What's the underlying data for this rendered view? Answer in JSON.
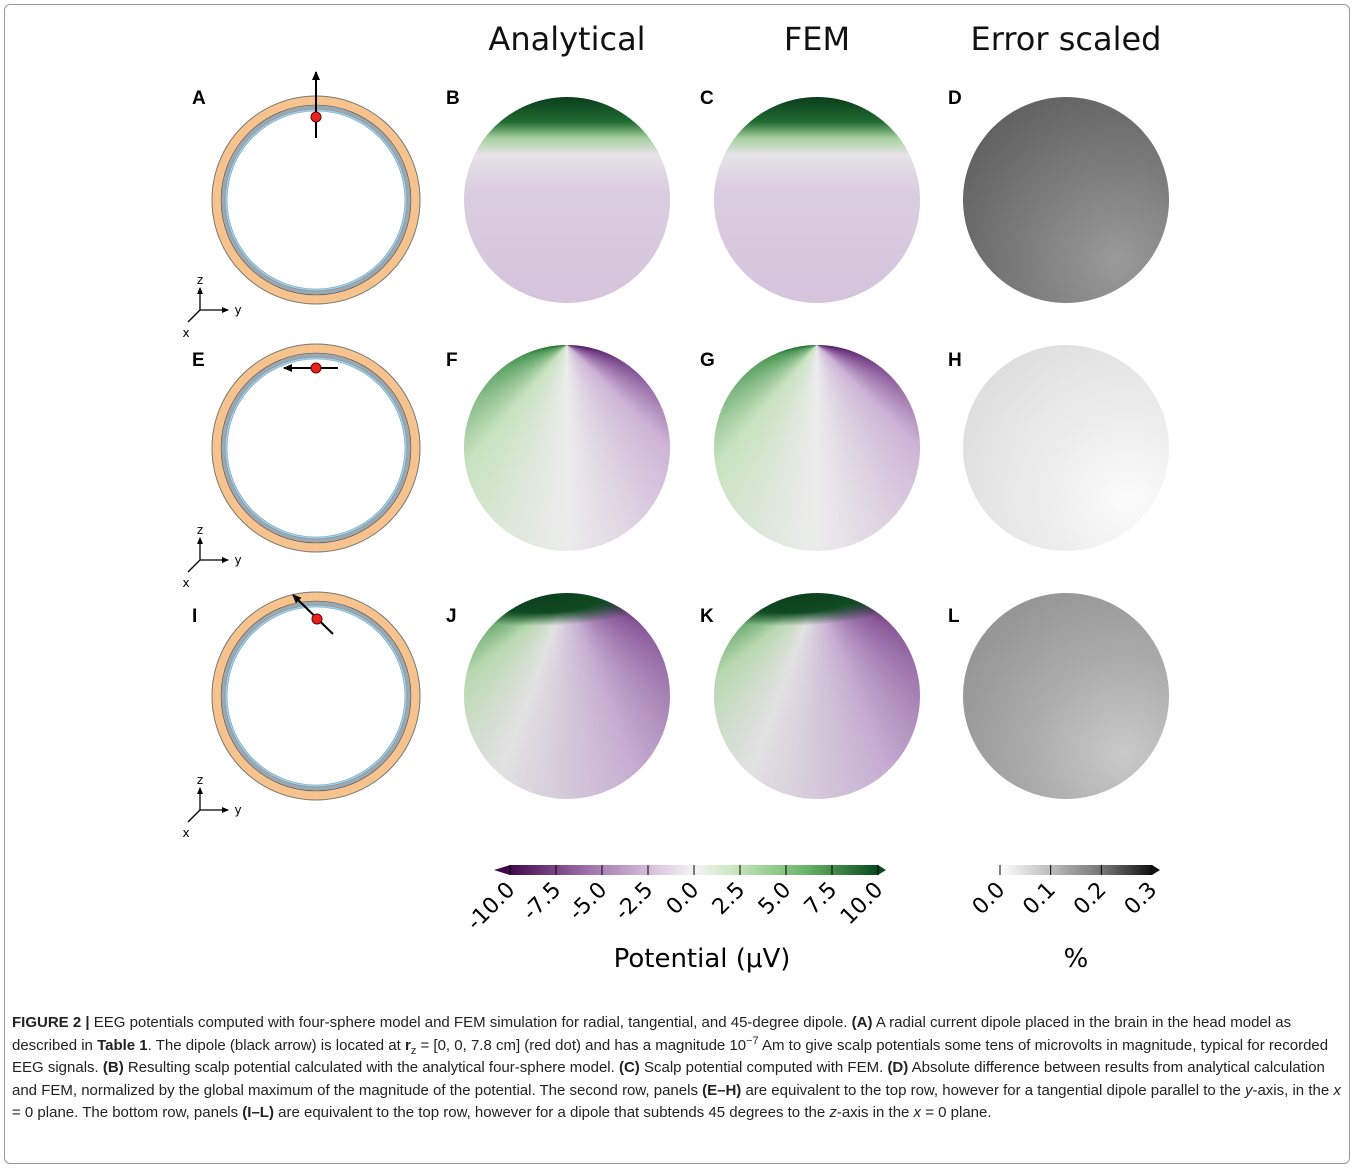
{
  "column_headers": [
    "Analytical",
    "FEM",
    "Error scaled"
  ],
  "panel_labels": [
    "A",
    "B",
    "C",
    "D",
    "E",
    "F",
    "G",
    "H",
    "I",
    "J",
    "K",
    "L"
  ],
  "axis_labels": [
    "z",
    "y",
    "x"
  ],
  "colorbars": [
    {
      "ticks": [
        "-10.0",
        "-7.5",
        "-5.0",
        "-2.5",
        "0.0",
        "2.5",
        "5.0",
        "7.5",
        "10.0"
      ],
      "label": "Potential (μV)"
    },
    {
      "ticks": [
        "0.0",
        "0.1",
        "0.2",
        "0.3"
      ],
      "label": "%"
    }
  ],
  "caption": {
    "runs": [
      {
        "text": "FIGURE 2 | ",
        "style": "b"
      },
      {
        "text": "EEG potentials computed with four-sphere model and FEM simulation for radial, tangential, and 45-degree dipole. "
      },
      {
        "text": "(A)",
        "style": "b"
      },
      {
        "text": " A radial current dipole placed in the brain in the head model as described in "
      },
      {
        "text": "Table 1",
        "style": "b"
      },
      {
        "text": ". The dipole (black arrow) is located at "
      },
      {
        "text": "r",
        "style": "b"
      },
      {
        "text": "z",
        "style": "sub"
      },
      {
        "text": " = [0, 0, 7.8 cm] (red dot) and has a magnitude 10"
      },
      {
        "text": "−7",
        "style": "sup"
      },
      {
        "text": " Am to give scalp potentials some tens of microvolts in magnitude, typical for recorded EEG signals. "
      },
      {
        "text": "(B)",
        "style": "b"
      },
      {
        "text": " Resulting scalp potential calculated with the analytical four-sphere model. "
      },
      {
        "text": "(C)",
        "style": "b"
      },
      {
        "text": " Scalp potential computed with FEM. "
      },
      {
        "text": "(D)",
        "style": "b"
      },
      {
        "text": " Absolute difference between results from analytical calculation and FEM, normalized by the global maximum of the magnitude of the potential. The second row, panels "
      },
      {
        "text": "(E–H)",
        "style": "b"
      },
      {
        "text": " are equivalent to the top row, however for a tangential dipole parallel to the "
      },
      {
        "text": "y",
        "style": "i"
      },
      {
        "text": "-axis, in the "
      },
      {
        "text": "x",
        "style": "i"
      },
      {
        "text": " = 0 plane. The bottom row, panels "
      },
      {
        "text": "(I–L)",
        "style": "b"
      },
      {
        "text": " are equivalent to the top row, however for a dipole that subtends 45 degrees to the "
      },
      {
        "text": "z",
        "style": "i"
      },
      {
        "text": "-axis in the "
      },
      {
        "text": "x",
        "style": "i"
      },
      {
        "text": " = 0 plane."
      }
    ]
  }
}
